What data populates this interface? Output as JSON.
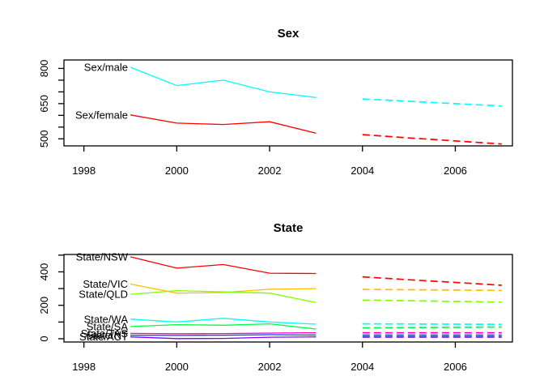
{
  "figure": {
    "background": "#FFFFFF",
    "foreground": "#000000",
    "description": "Grouped time series plot with history (solid) and forecasts (dashed)"
  },
  "chart_data": [
    {
      "type": "line",
      "title": "Sex",
      "grid": false,
      "legend_position": "inline-left-labels",
      "x_hist": [
        1999,
        2000,
        2001,
        2002,
        2003
      ],
      "x_forecast": [
        2004,
        2005,
        2006,
        2007
      ],
      "x_ticks": [
        1998,
        2000,
        2002,
        2004,
        2006
      ],
      "y_ticks": [
        500,
        550,
        600,
        650,
        700,
        750,
        800
      ],
      "y_labeled_ticks": [
        500,
        650,
        800
      ],
      "xlim": [
        1997.57,
        2007.23
      ],
      "ylim": [
        470,
        836
      ],
      "series": [
        {
          "name": "Sex/male",
          "label": "Sex/male",
          "color": "#00FFFF",
          "history": [
            805,
            727,
            750,
            700,
            676
          ],
          "forecast": [
            670,
            660,
            650,
            640
          ]
        },
        {
          "name": "Sex/female",
          "label": "Sex/female",
          "color": "#FF0000",
          "history": [
            602,
            567,
            561,
            573,
            524
          ],
          "forecast": [
            518,
            504,
            491,
            478
          ]
        }
      ]
    },
    {
      "type": "line",
      "title": "State",
      "grid": false,
      "legend_position": "inline-left-labels",
      "x_hist": [
        1999,
        2000,
        2001,
        2002,
        2003
      ],
      "x_forecast": [
        2004,
        2005,
        2006,
        2007
      ],
      "x_ticks": [
        1998,
        2000,
        2002,
        2004,
        2006
      ],
      "y_ticks": [
        0,
        100,
        200,
        300,
        400,
        500
      ],
      "y_labeled_ticks": [
        0,
        200,
        400
      ],
      "xlim": [
        1997.57,
        2007.23
      ],
      "ylim": [
        -19.5,
        504
      ],
      "series": [
        {
          "name": "State/NSW",
          "label": "State/NSW",
          "color": "#FF0000",
          "history": [
            490,
            422,
            444,
            392,
            390
          ],
          "forecast": [
            370,
            353,
            337,
            320
          ]
        },
        {
          "name": "State/VIC",
          "label": "State/VIC",
          "color": "#FFBF00",
          "history": [
            327,
            273,
            276,
            296,
            300
          ],
          "forecast": [
            295,
            293,
            291,
            289
          ]
        },
        {
          "name": "State/QLD",
          "label": "State/QLD",
          "color": "#80FF00",
          "history": [
            266,
            288,
            280,
            273,
            216
          ],
          "forecast": [
            231,
            227,
            223,
            219
          ]
        },
        {
          "name": "State/SA",
          "label": "State/SA",
          "color": "#00FF40",
          "history": [
            73,
            84,
            81,
            89,
            58
          ],
          "forecast": [
            65,
            67,
            68,
            70
          ]
        },
        {
          "name": "State/WA",
          "label": "State/WA",
          "color": "#00FFFF",
          "history": [
            117,
            100,
            122,
            100,
            87
          ],
          "forecast": [
            89,
            88,
            87,
            86
          ]
        },
        {
          "name": "State/NT",
          "label": "State/NT",
          "color": "#0040FF",
          "history": [
            21,
            20,
            21,
            24,
            22
          ],
          "forecast": [
            21,
            21,
            21,
            21
          ]
        },
        {
          "name": "State/ACT",
          "label": "State/ACT",
          "color": "#8000FF",
          "history": [
            11,
            1,
            2,
            9,
            11
          ],
          "forecast": [
            10,
            10,
            10,
            10
          ]
        },
        {
          "name": "State/TAS",
          "label": "State/TAS",
          "color": "#FF00BF",
          "history": [
            32,
            30,
            31,
            34,
            36
          ],
          "forecast": [
            36,
            36,
            36,
            36
          ]
        }
      ]
    }
  ]
}
